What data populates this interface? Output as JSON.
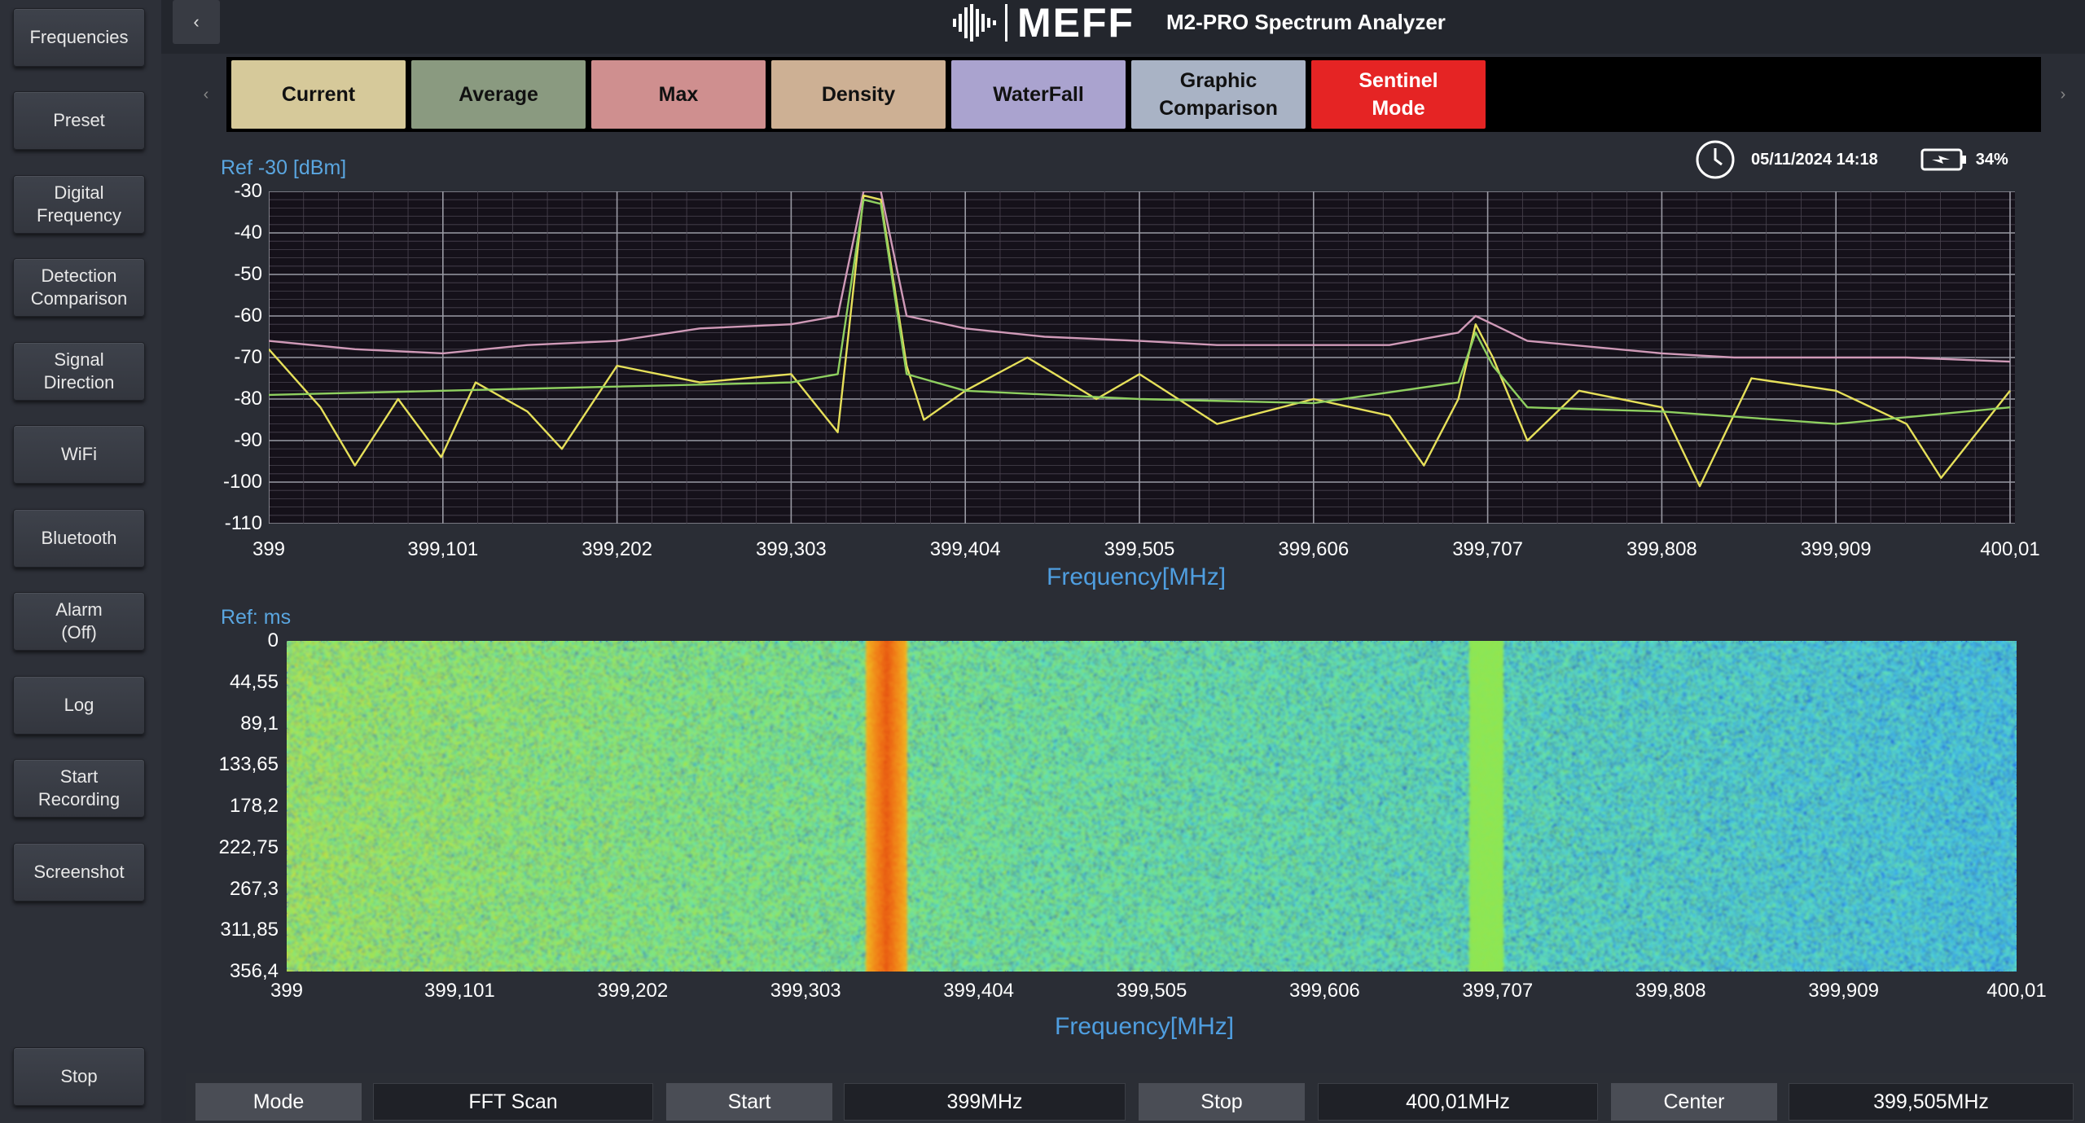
{
  "header": {
    "logo_text": "MEFF",
    "title": "M2-PRO Spectrum Analyzer",
    "collapse_icon": "chevron-left-icon"
  },
  "sidebar": {
    "items": [
      {
        "label": "Frequencies"
      },
      {
        "label": "Preset"
      },
      {
        "label": "Digital\nFrequency"
      },
      {
        "label": "Detection\nComparison"
      },
      {
        "label": "Signal\nDirection"
      },
      {
        "label": "WiFi"
      },
      {
        "label": "Bluetooth"
      },
      {
        "label": "Alarm\n(Off)"
      },
      {
        "label": "Log"
      },
      {
        "label": "Start\nRecording"
      },
      {
        "label": "Screenshot"
      }
    ],
    "stop_label": "Stop"
  },
  "tabs": [
    {
      "label": "Current",
      "color": "#d6c99a"
    },
    {
      "label": "Average",
      "color": "#8a9a80"
    },
    {
      "label": "Max",
      "color": "#cf8f8f"
    },
    {
      "label": "Density",
      "color": "#cdb094"
    },
    {
      "label": "WaterFall",
      "color": "#aaa3cf"
    },
    {
      "label": "Graphic\nComparison",
      "color": "#a9b3c5"
    },
    {
      "label": "Sentinel\nMode",
      "color": "#e52424"
    }
  ],
  "status": {
    "datetime": "05/11/2024  14:18",
    "battery": "34%",
    "clock_icon": "clock-icon",
    "battery_icon": "battery-charging-icon"
  },
  "spectrum": {
    "ref_label": "Ref  -30 [dBm]",
    "xlabel": "Frequency[MHz]",
    "y_ticks": [
      "-30",
      "-40",
      "-50",
      "-60",
      "-70",
      "-80",
      "-90",
      "-100",
      "-110"
    ],
    "x_ticks": [
      "399",
      "399,101",
      "399,202",
      "399,303",
      "399,404",
      "399,505",
      "399,606",
      "399,707",
      "399,808",
      "399,909",
      "400,01"
    ]
  },
  "waterfall": {
    "ref_label": "Ref: ms",
    "xlabel": "Frequency[MHz]",
    "y_ticks": [
      "0",
      "44,55",
      "89,1",
      "133,65",
      "178,2",
      "222,75",
      "267,3",
      "311,85",
      "356,4"
    ],
    "x_ticks": [
      "399",
      "399,101",
      "399,202",
      "399,303",
      "399,404",
      "399,505",
      "399,606",
      "399,707",
      "399,808",
      "399,909",
      "400,01"
    ]
  },
  "chart_data": [
    {
      "type": "line",
      "xlabel": "Frequency[MHz]",
      "ylabel": "",
      "xlim": [
        399,
        400.01
      ],
      "ylim": [
        -110,
        -30
      ],
      "grid": true,
      "series": [
        {
          "color": "#d09ab8",
          "x": [
            399,
            399.05,
            399.101,
            399.15,
            399.202,
            399.25,
            399.303,
            399.33,
            399.345,
            399.355,
            399.37,
            399.404,
            399.45,
            399.505,
            399.55,
            399.606,
            399.65,
            399.69,
            399.7,
            399.71,
            399.73,
            399.808,
            399.85,
            399.909,
            399.95,
            400.01
          ],
          "values": [
            -66,
            -68,
            -69,
            -67,
            -66,
            -63,
            -62,
            -60,
            -30,
            -30,
            -60,
            -63,
            -65,
            -66,
            -67,
            -67,
            -67,
            -64,
            -60,
            -62,
            -66,
            -69,
            -70,
            -70,
            -70,
            -71
          ]
        },
        {
          "color": "#e6e05a",
          "x": [
            399,
            399.03,
            399.05,
            399.075,
            399.1,
            399.12,
            399.15,
            399.17,
            399.202,
            399.25,
            399.303,
            399.33,
            399.345,
            399.355,
            399.37,
            399.38,
            399.404,
            399.44,
            399.48,
            399.505,
            399.55,
            399.606,
            399.65,
            399.67,
            399.69,
            399.7,
            399.71,
            399.73,
            399.76,
            399.808,
            399.83,
            399.86,
            399.909,
            399.95,
            399.97,
            400.01
          ],
          "values": [
            -68,
            -82,
            -96,
            -80,
            -94,
            -76,
            -83,
            -92,
            -72,
            -76,
            -74,
            -88,
            -31,
            -32,
            -72,
            -85,
            -78,
            -70,
            -80,
            -74,
            -86,
            -80,
            -84,
            -96,
            -80,
            -62,
            -70,
            -90,
            -78,
            -82,
            -101,
            -75,
            -78,
            -86,
            -99,
            -78
          ]
        },
        {
          "color": "#8fd060",
          "x": [
            399,
            399.101,
            399.202,
            399.303,
            399.33,
            399.345,
            399.355,
            399.37,
            399.404,
            399.505,
            399.606,
            399.69,
            399.7,
            399.71,
            399.73,
            399.808,
            399.909,
            400.01
          ],
          "values": [
            -79,
            -78,
            -77,
            -76,
            -74,
            -32,
            -33,
            -74,
            -78,
            -80,
            -81,
            -76,
            -64,
            -72,
            -82,
            -83,
            -86,
            -82
          ]
        }
      ]
    },
    {
      "type": "heatmap",
      "xlabel": "Frequency[MHz]",
      "ylabel": "",
      "xlim": [
        399,
        400.01
      ],
      "ylim": [
        0,
        356.4
      ],
      "y_unit": "ms",
      "hot_frequencies": [
        399.35,
        399.7
      ]
    }
  ]
}
